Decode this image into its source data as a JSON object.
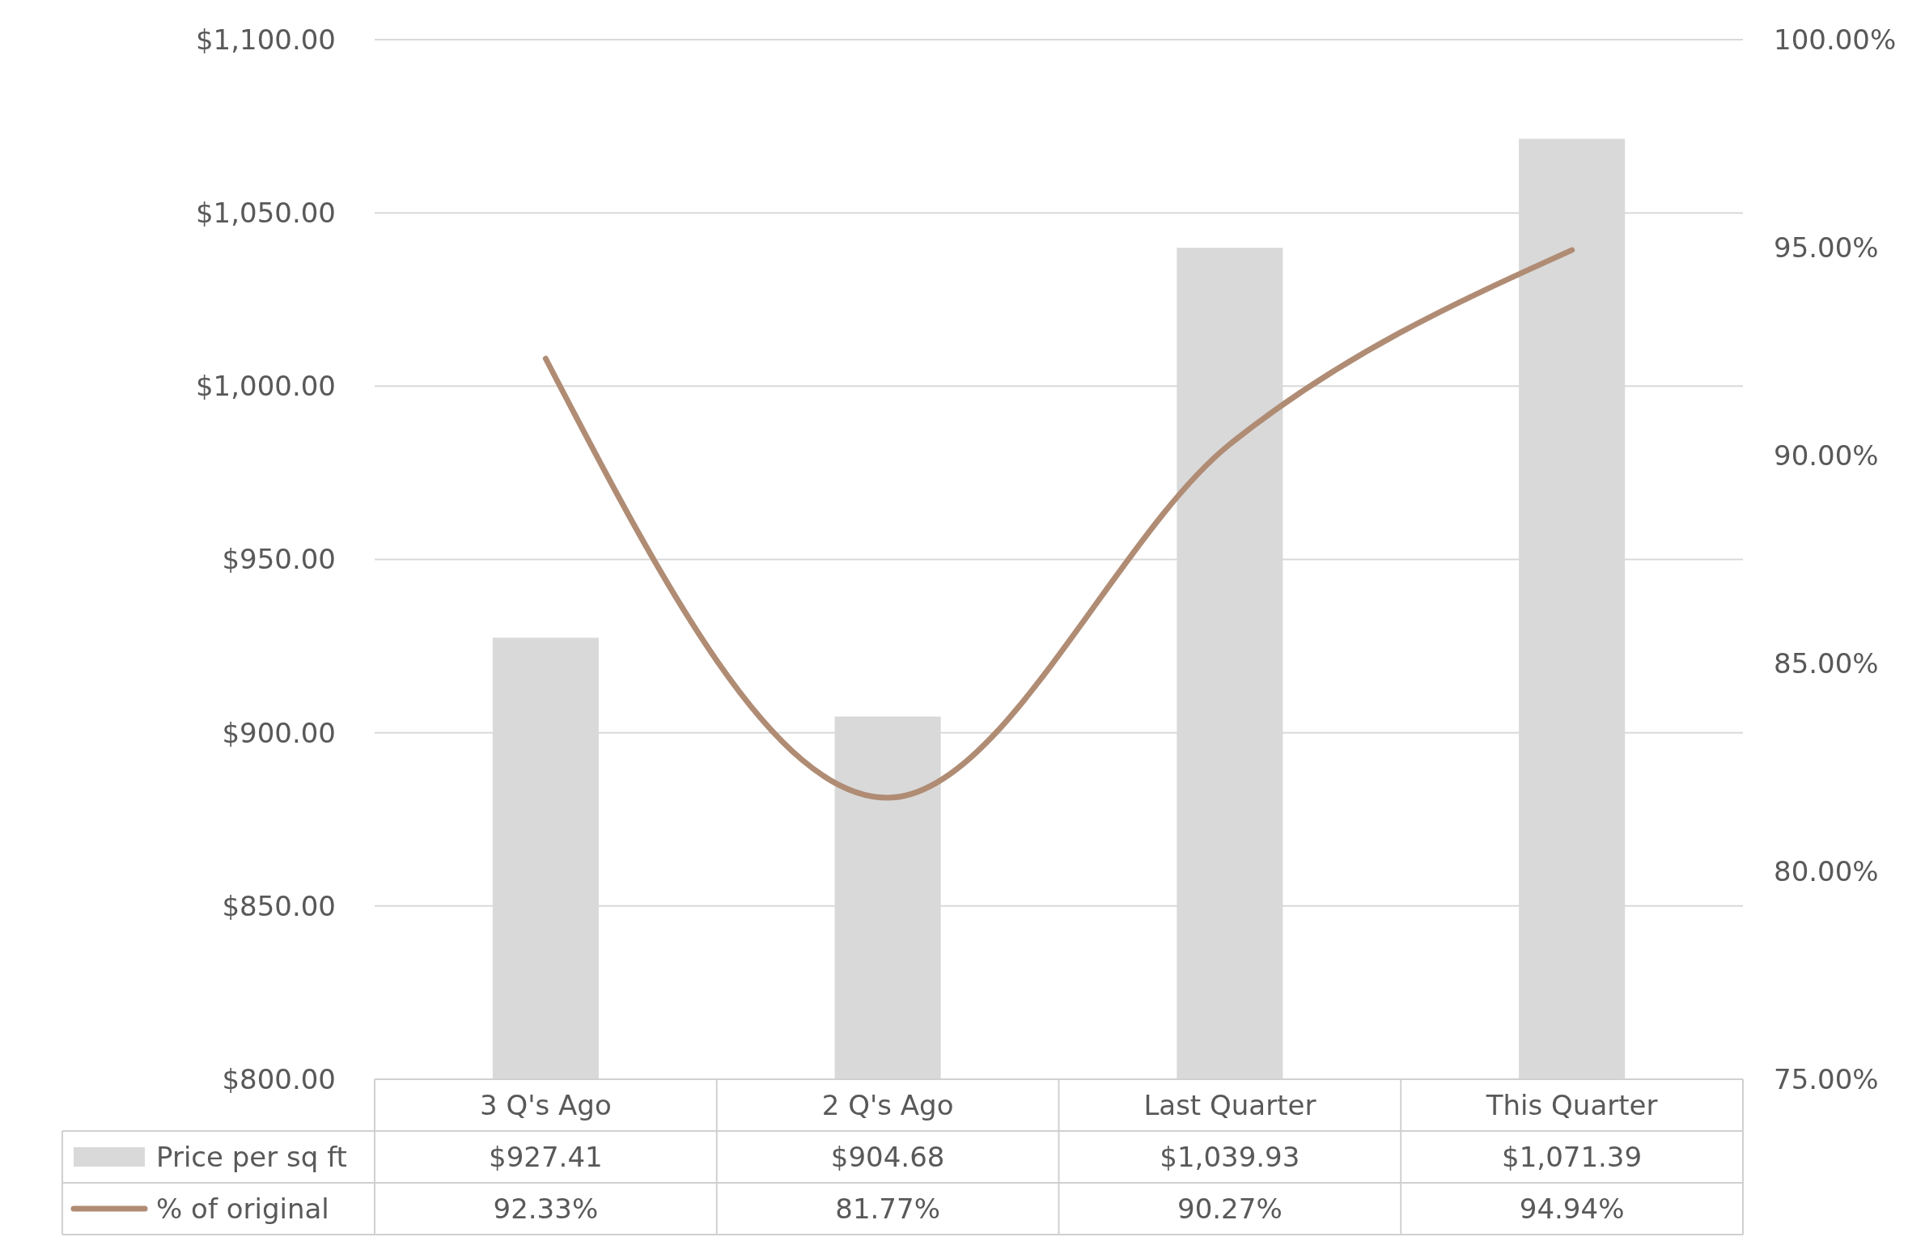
{
  "chart_data": {
    "type": "bar",
    "categories": [
      "3 Q's Ago",
      "2 Q's Ago",
      "Last Quarter",
      "This Quarter"
    ],
    "series": [
      {
        "name": "Price per sq ft",
        "color": "#d9d9d9",
        "values": [
          927.41,
          904.68,
          1039.93,
          1071.39
        ],
        "value_labels": [
          "$927.41",
          "$904.68",
          "$1,039.93",
          "$1,071.39"
        ]
      },
      {
        "name": "% of original",
        "type": "line",
        "axis": "y2",
        "color": "#b08c74",
        "values": [
          92.33,
          81.77,
          90.27,
          94.94
        ],
        "value_labels": [
          "92.33%",
          "81.77%",
          "90.27%",
          "94.94%"
        ]
      }
    ],
    "ylim": [
      800,
      1100
    ],
    "yticks": [
      {
        "value": 800,
        "label": "$800.00"
      },
      {
        "value": 850,
        "label": "$850.00"
      },
      {
        "value": 900,
        "label": "$900.00"
      },
      {
        "value": 950,
        "label": "$950.00"
      },
      {
        "value": 1000,
        "label": "$1,000.00"
      },
      {
        "value": 1050,
        "label": "$1,050.00"
      },
      {
        "value": 1100,
        "label": "$1,100.00"
      }
    ],
    "y2lim": [
      75,
      100
    ],
    "y2ticks": [
      {
        "value": 75,
        "label": "75.00%"
      },
      {
        "value": 80,
        "label": "80.00%"
      },
      {
        "value": 85,
        "label": "85.00%"
      },
      {
        "value": 90,
        "label": "90.00%"
      },
      {
        "value": 95,
        "label": "95.00%"
      },
      {
        "value": 100,
        "label": "100.00%"
      }
    ],
    "grid": "y",
    "legend": "bottom"
  }
}
